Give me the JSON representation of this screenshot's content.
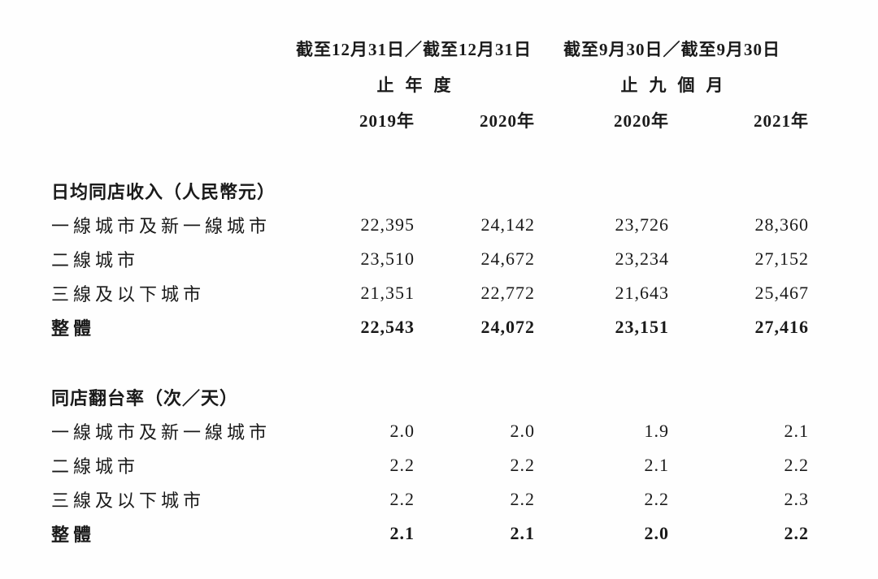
{
  "document": {
    "header": {
      "groups": [
        {
          "period": "截至12月31日／截至12月31日",
          "duration": "止年度"
        },
        {
          "period": "截至9月30日／截至9月30日",
          "duration": "止九個月"
        }
      ],
      "years": [
        "2019年",
        "2020年",
        "2020年",
        "2021年"
      ]
    },
    "sections": [
      {
        "title": "日均同店收入（人民幣元）",
        "rows": [
          {
            "label": "一線城市及新一線城市",
            "values": [
              "22,395",
              "24,142",
              "23,726",
              "28,360"
            ]
          },
          {
            "label": "二線城市",
            "values": [
              "23,510",
              "24,672",
              "23,234",
              "27,152"
            ]
          },
          {
            "label": "三線及以下城市",
            "values": [
              "21,351",
              "22,772",
              "21,643",
              "25,467"
            ]
          },
          {
            "label": "整體",
            "values": [
              "22,543",
              "24,072",
              "23,151",
              "27,416"
            ]
          }
        ]
      },
      {
        "title": "同店翻台率（次／天）",
        "rows": [
          {
            "label": "一線城市及新一線城市",
            "values": [
              "2.0",
              "2.0",
              "1.9",
              "2.1"
            ]
          },
          {
            "label": "二線城市",
            "values": [
              "2.2",
              "2.2",
              "2.1",
              "2.2"
            ]
          },
          {
            "label": "三線及以下城市",
            "values": [
              "2.2",
              "2.2",
              "2.2",
              "2.3"
            ]
          },
          {
            "label": "整體",
            "values": [
              "2.1",
              "2.1",
              "2.0",
              "2.2"
            ]
          }
        ]
      }
    ]
  },
  "chart_data": {
    "type": "table",
    "column_groups": [
      {
        "label": "截至12月31日／截至12月31日止年度",
        "columns": [
          "2019年",
          "2020年"
        ]
      },
      {
        "label": "截至9月30日／截至9月30日止九個月",
        "columns": [
          "2020年",
          "2021年"
        ]
      }
    ],
    "columns": [
      "2019年",
      "2020年",
      "2020年",
      "2021年"
    ],
    "sections": [
      {
        "title": "日均同店收入（人民幣元）",
        "rows": [
          {
            "label": "一線城市及新一線城市",
            "values": [
              22395,
              24142,
              23726,
              28360
            ]
          },
          {
            "label": "二線城市",
            "values": [
              23510,
              24672,
              23234,
              27152
            ]
          },
          {
            "label": "三線及以下城市",
            "values": [
              21351,
              22772,
              21643,
              25467
            ]
          },
          {
            "label": "整體",
            "values": [
              22543,
              24072,
              23151,
              27416
            ],
            "emphasis": true
          }
        ]
      },
      {
        "title": "同店翻台率（次／天）",
        "rows": [
          {
            "label": "一線城市及新一線城市",
            "values": [
              2.0,
              2.0,
              1.9,
              2.1
            ]
          },
          {
            "label": "二線城市",
            "values": [
              2.2,
              2.2,
              2.1,
              2.2
            ]
          },
          {
            "label": "三線及以下城市",
            "values": [
              2.2,
              2.2,
              2.2,
              2.3
            ]
          },
          {
            "label": "整體",
            "values": [
              2.1,
              2.1,
              2.0,
              2.2
            ],
            "emphasis": true
          }
        ]
      }
    ]
  }
}
